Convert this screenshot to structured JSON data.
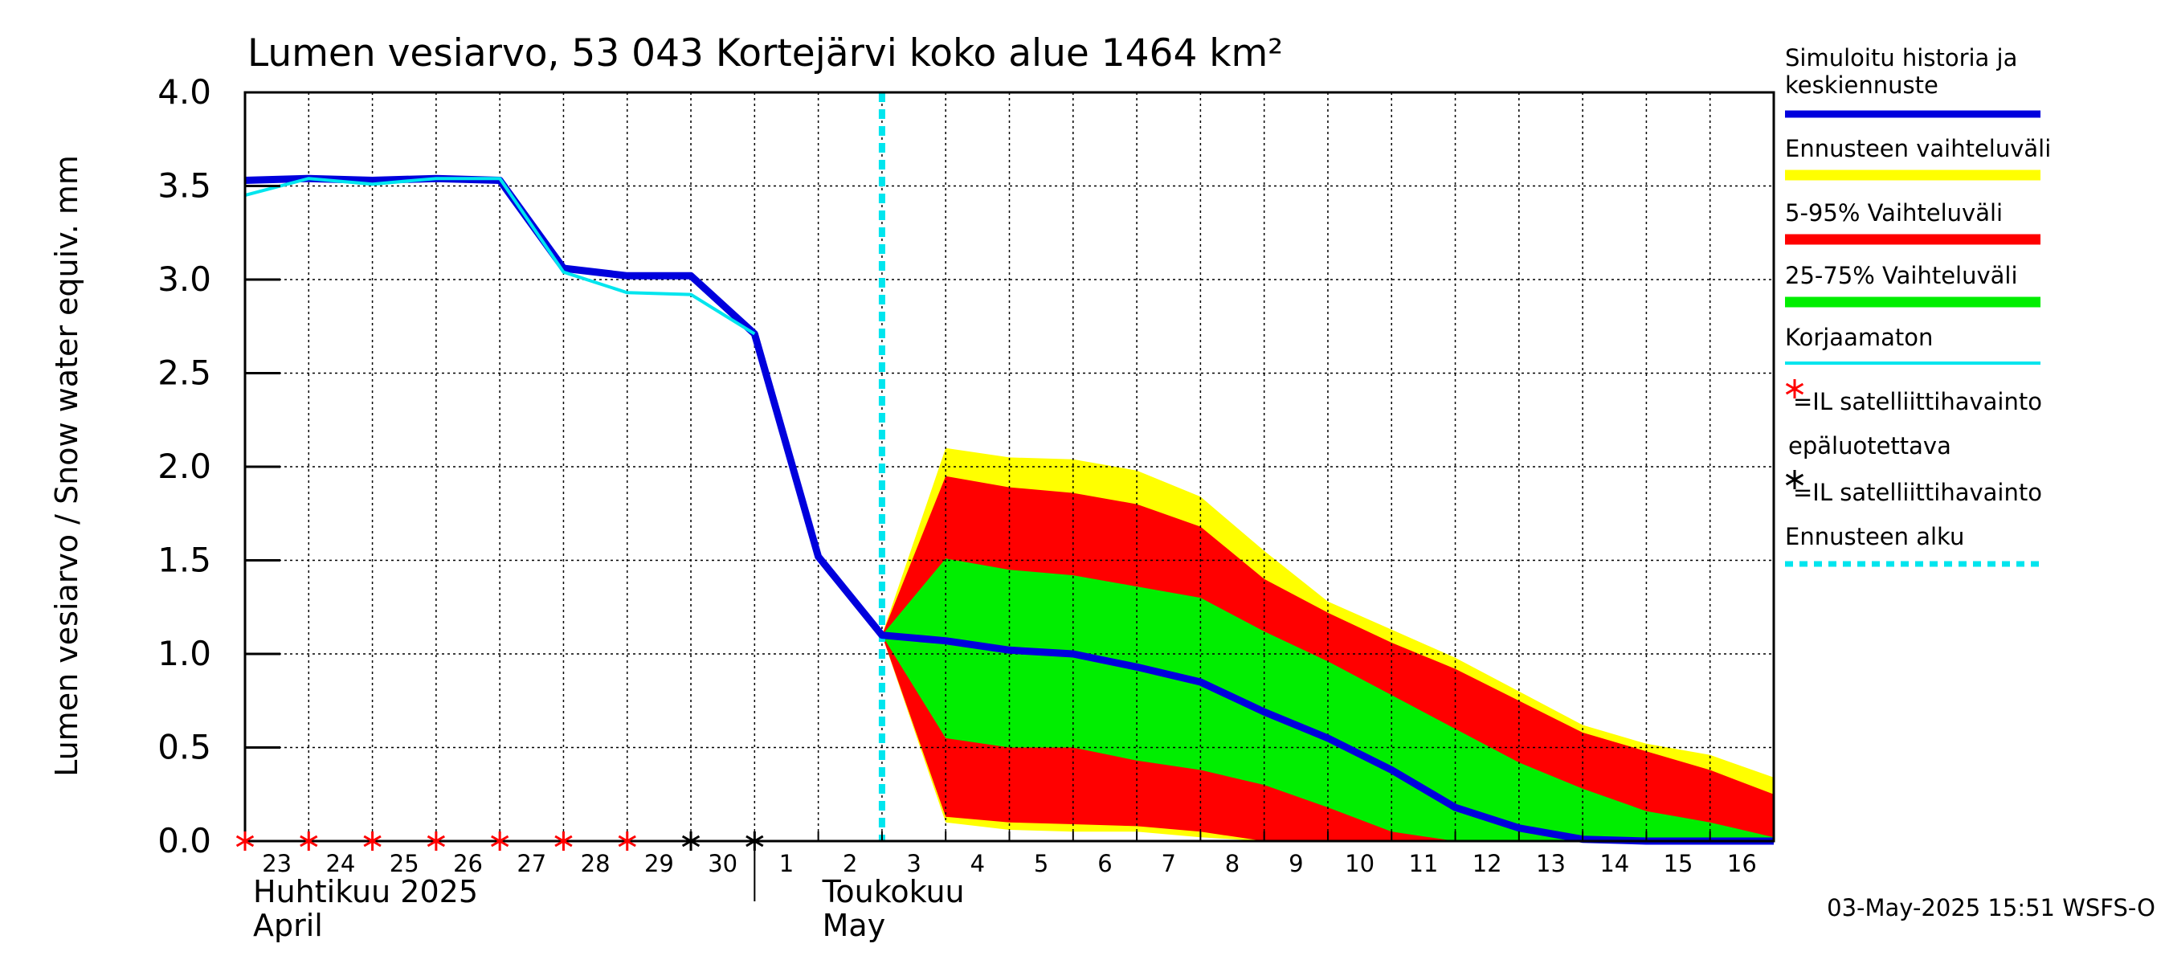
{
  "chart_data": {
    "type": "area",
    "title": "Lumen vesiarvo, 53 043 Kortejärvi koko alue 1464 km²",
    "ylabel": "Lumen vesiarvo / Snow water equiv.    mm",
    "ylim": [
      0,
      4.0
    ],
    "yticks": [
      "0.0",
      "0.5",
      "1.0",
      "1.5",
      "2.0",
      "2.5",
      "3.0",
      "3.5",
      "4.0"
    ],
    "x_start": "2025-04-23",
    "x_end": "2025-05-17",
    "x_tick_labels": [
      "23",
      "24",
      "25",
      "26",
      "27",
      "28",
      "29",
      "30",
      "1",
      "2",
      "3",
      "4",
      "5",
      "6",
      "7",
      "8",
      "9",
      "10",
      "11",
      "12",
      "13",
      "14",
      "15",
      "16"
    ],
    "month_labels": [
      {
        "fi": "Huhtikuu  2025",
        "en": "April"
      },
      {
        "fi": "Toukokuu",
        "en": "May"
      }
    ],
    "forecast_start": "2025-05-03",
    "series": [
      {
        "name": "Simuloitu historia ja keskiennuste",
        "color": "#0000dd",
        "x": [
          "2025-04-23",
          "2025-04-24",
          "2025-04-25",
          "2025-04-26",
          "2025-04-27",
          "2025-04-28",
          "2025-04-29",
          "2025-04-30",
          "2025-05-01",
          "2025-05-02",
          "2025-05-03",
          "2025-05-04",
          "2025-05-05",
          "2025-05-06",
          "2025-05-07",
          "2025-05-08",
          "2025-05-09",
          "2025-05-10",
          "2025-05-11",
          "2025-05-12",
          "2025-05-13",
          "2025-05-14",
          "2025-05-15",
          "2025-05-16",
          "2025-05-17"
        ],
        "y": [
          3.53,
          3.54,
          3.53,
          3.54,
          3.53,
          3.06,
          3.02,
          3.02,
          2.71,
          1.52,
          1.1,
          1.07,
          1.02,
          1.0,
          0.93,
          0.85,
          0.69,
          0.55,
          0.38,
          0.18,
          0.07,
          0.01,
          0.0,
          0.0,
          0.0
        ]
      },
      {
        "name": "Korjaamaton",
        "color": "#00e5ee",
        "x": [
          "2025-04-23",
          "2025-04-24",
          "2025-04-25",
          "2025-04-26",
          "2025-04-27",
          "2025-04-28",
          "2025-04-29",
          "2025-04-30",
          "2025-05-01"
        ],
        "y": [
          3.45,
          3.54,
          3.51,
          3.54,
          3.54,
          3.04,
          2.93,
          2.92,
          2.71
        ]
      }
    ],
    "bands": [
      {
        "name": "Ennusteen vaihteluväli",
        "color": "#ffff00",
        "x": [
          "2025-05-03",
          "2025-05-04",
          "2025-05-05",
          "2025-05-06",
          "2025-05-07",
          "2025-05-08",
          "2025-05-09",
          "2025-05-10",
          "2025-05-11",
          "2025-05-12",
          "2025-05-13",
          "2025-05-14",
          "2025-05-15",
          "2025-05-16",
          "2025-05-17"
        ],
        "upper": [
          1.1,
          2.1,
          2.05,
          2.04,
          1.98,
          1.84,
          1.55,
          1.28,
          1.13,
          0.98,
          0.8,
          0.62,
          0.52,
          0.46,
          0.34
        ],
        "lower": [
          1.1,
          0.1,
          0.06,
          0.05,
          0.05,
          0.02,
          0.0,
          0.0,
          0.0,
          0.0,
          0.0,
          0.0,
          0.0,
          0.0,
          0.0
        ]
      },
      {
        "name": "5-95% Vaihteluväli",
        "color": "#ff0000",
        "x": [
          "2025-05-03",
          "2025-05-04",
          "2025-05-05",
          "2025-05-06",
          "2025-05-07",
          "2025-05-08",
          "2025-05-09",
          "2025-05-10",
          "2025-05-11",
          "2025-05-12",
          "2025-05-13",
          "2025-05-14",
          "2025-05-15",
          "2025-05-16",
          "2025-05-17"
        ],
        "upper": [
          1.1,
          1.95,
          1.89,
          1.86,
          1.8,
          1.68,
          1.4,
          1.22,
          1.06,
          0.92,
          0.75,
          0.58,
          0.48,
          0.38,
          0.25
        ],
        "lower": [
          1.1,
          0.13,
          0.1,
          0.09,
          0.08,
          0.05,
          0.0,
          0.0,
          0.0,
          0.0,
          0.0,
          0.0,
          0.0,
          0.0,
          0.0
        ]
      },
      {
        "name": "25-75% Vaihteluväli",
        "color": "#00ee00",
        "x": [
          "2025-05-03",
          "2025-05-04",
          "2025-05-05",
          "2025-05-06",
          "2025-05-07",
          "2025-05-08",
          "2025-05-09",
          "2025-05-10",
          "2025-05-11",
          "2025-05-12",
          "2025-05-13",
          "2025-05-14",
          "2025-05-15",
          "2025-05-16",
          "2025-05-17"
        ],
        "upper": [
          1.1,
          1.51,
          1.45,
          1.42,
          1.36,
          1.3,
          1.12,
          0.96,
          0.78,
          0.6,
          0.42,
          0.28,
          0.16,
          0.1,
          0.02
        ],
        "lower": [
          1.1,
          0.55,
          0.5,
          0.5,
          0.43,
          0.38,
          0.3,
          0.18,
          0.05,
          0.0,
          0.0,
          0.0,
          0.0,
          0.0,
          0.0
        ]
      }
    ],
    "satellite_observations": {
      "unreliable": [
        "2025-04-23",
        "2025-04-24",
        "2025-04-25",
        "2025-04-26",
        "2025-04-27",
        "2025-04-28",
        "2025-04-29"
      ],
      "valid": [
        "2025-04-30",
        "2025-05-01"
      ]
    },
    "legend": {
      "placement": "right",
      "items": [
        {
          "label": "Simuloitu historia ja keskiennuste",
          "color": "#0000dd",
          "style": "line"
        },
        {
          "label": "Ennusteen vaihteluväli",
          "color": "#ffff00",
          "style": "band"
        },
        {
          "label": "5-95% Vaihteluväli",
          "color": "#ff0000",
          "style": "band"
        },
        {
          "label": "25-75% Vaihteluväli",
          "color": "#00ee00",
          "style": "band"
        },
        {
          "label": "Korjaamaton",
          "color": "#00e5ee",
          "style": "thin"
        },
        {
          "label": "=IL satelliittihavainto epäluotettava",
          "color": "#ff0000",
          "style": "star"
        },
        {
          "label": "=IL satelliittihavainto",
          "color": "#000000",
          "style": "star"
        },
        {
          "label": "Ennusteen alku",
          "color": "#00e5ee",
          "style": "dashed"
        }
      ]
    },
    "grid": true,
    "footer": "03-May-2025 15:51 WSFS-O"
  }
}
